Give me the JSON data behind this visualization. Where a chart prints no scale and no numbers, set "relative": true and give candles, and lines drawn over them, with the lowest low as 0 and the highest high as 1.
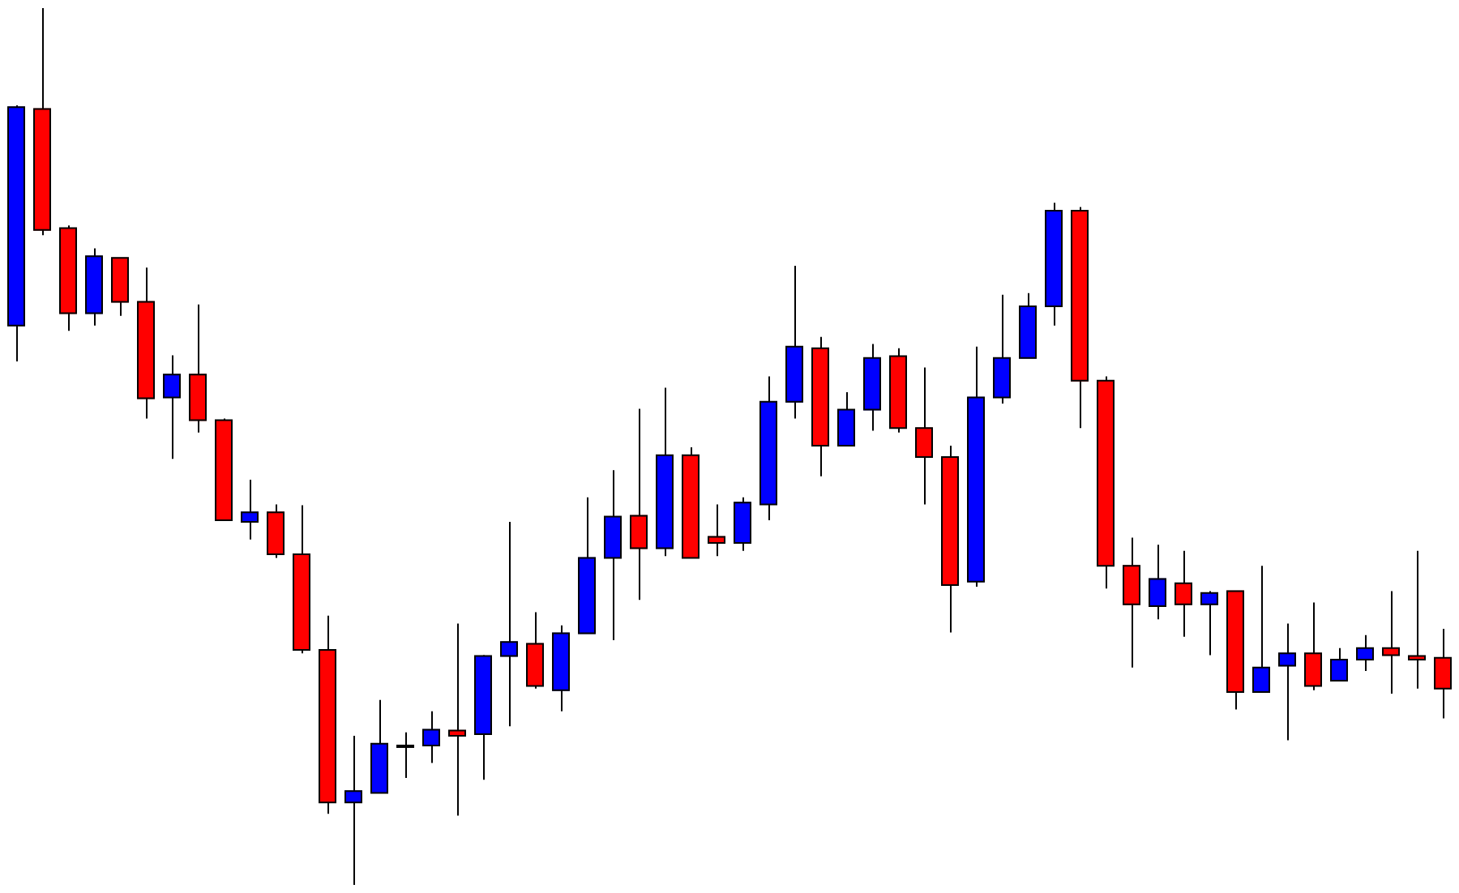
{
  "chart_data": {
    "type": "candlestick",
    "relative": true,
    "categories": [
      null,
      null,
      null,
      null,
      null,
      null,
      null,
      null,
      null,
      null,
      null,
      null,
      null,
      null,
      null,
      null,
      null,
      null,
      null,
      null,
      null,
      null,
      null,
      null,
      null,
      null,
      null,
      null,
      null,
      null,
      null,
      null,
      null,
      null,
      null,
      null,
      null,
      null,
      null,
      null,
      null,
      null,
      null,
      null,
      null,
      null,
      null,
      null,
      null,
      null,
      null,
      null,
      null,
      null,
      null,
      null
    ],
    "ohlc": [
      [
        0.638,
        0.889,
        0.597,
        0.887
      ],
      [
        0.885,
        1,
        0.741,
        0.747
      ],
      [
        0.749,
        0.752,
        0.632,
        0.652
      ],
      [
        0.652,
        0.726,
        0.638,
        0.717
      ],
      [
        0.715,
        0.715,
        0.649,
        0.665
      ],
      [
        0.665,
        0.704,
        0.532,
        0.555
      ],
      [
        0.556,
        0.604,
        0.486,
        0.582
      ],
      [
        0.582,
        0.662,
        0.516,
        0.53
      ],
      [
        0.53,
        0.532,
        0.416,
        0.416
      ],
      [
        0.414,
        0.462,
        0.394,
        0.425
      ],
      [
        0.425,
        0.434,
        0.373,
        0.377
      ],
      [
        0.377,
        0.433,
        0.264,
        0.268
      ],
      [
        0.268,
        0.307,
        0.081,
        0.094
      ],
      [
        0.094,
        0.17,
        0,
        0.107
      ],
      [
        0.105,
        0.211,
        0.105,
        0.161
      ],
      [
        0.159,
        0.174,
        0.122,
        0.159
      ],
      [
        0.159,
        0.198,
        0.139,
        0.177
      ],
      [
        0.176,
        0.298,
        0.079,
        0.17
      ],
      [
        0.172,
        0.262,
        0.12,
        0.261
      ],
      [
        0.261,
        0.414,
        0.181,
        0.277
      ],
      [
        0.275,
        0.311,
        0.224,
        0.227
      ],
      [
        0.222,
        0.296,
        0.198,
        0.287
      ],
      [
        0.287,
        0.442,
        0.287,
        0.373
      ],
      [
        0.373,
        0.473,
        0.279,
        0.42
      ],
      [
        0.421,
        0.543,
        0.325,
        0.384
      ],
      [
        0.384,
        0.567,
        0.375,
        0.49
      ],
      [
        0.49,
        0.499,
        0.373,
        0.373
      ],
      [
        0.397,
        0.434,
        0.375,
        0.39
      ],
      [
        0.39,
        0.442,
        0.381,
        0.436
      ],
      [
        0.434,
        0.58,
        0.416,
        0.551
      ],
      [
        0.551,
        0.706,
        0.532,
        0.614
      ],
      [
        0.612,
        0.625,
        0.466,
        0.501
      ],
      [
        0.501,
        0.562,
        0.501,
        0.542
      ],
      [
        0.542,
        0.617,
        0.518,
        0.601
      ],
      [
        0.603,
        0.612,
        0.516,
        0.521
      ],
      [
        0.521,
        0.59,
        0.434,
        0.488
      ],
      [
        0.488,
        0.501,
        0.288,
        0.342
      ],
      [
        0.346,
        0.614,
        0.34,
        0.556
      ],
      [
        0.556,
        0.673,
        0.549,
        0.601
      ],
      [
        0.601,
        0.675,
        0.601,
        0.66
      ],
      [
        0.66,
        0.778,
        0.638,
        0.769
      ],
      [
        0.769,
        0.773,
        0.521,
        0.575
      ],
      [
        0.575,
        0.58,
        0.338,
        0.364
      ],
      [
        0.364,
        0.396,
        0.248,
        0.32
      ],
      [
        0.318,
        0.388,
        0.303,
        0.349
      ],
      [
        0.344,
        0.381,
        0.283,
        0.32
      ],
      [
        0.32,
        0.335,
        0.262,
        0.333
      ],
      [
        0.335,
        0.335,
        0.2,
        0.22
      ],
      [
        0.22,
        0.364,
        0.22,
        0.248
      ],
      [
        0.25,
        0.298,
        0.165,
        0.264
      ],
      [
        0.264,
        0.322,
        0.222,
        0.227
      ],
      [
        0.233,
        0.27,
        0.233,
        0.257
      ],
      [
        0.257,
        0.285,
        0.244,
        0.27
      ],
      [
        0.27,
        0.335,
        0.218,
        0.262
      ],
      [
        0.261,
        0.381,
        0.224,
        0.257
      ],
      [
        0.259,
        0.292,
        0.19,
        0.224
      ]
    ],
    "colors": [
      "#0000ff",
      "#ff0000",
      "#ff0000",
      "#0000ff",
      "#ff0000",
      "#ff0000",
      "#0000ff",
      "#ff0000",
      "#ff0000",
      "#0000ff",
      "#ff0000",
      "#ff0000",
      "#ff0000",
      "#0000ff",
      "#0000ff",
      "#0000ff",
      "#0000ff",
      "#ff0000",
      "#0000ff",
      "#0000ff",
      "#ff0000",
      "#0000ff",
      "#0000ff",
      "#0000ff",
      "#ff0000",
      "#0000ff",
      "#ff0000",
      "#ff0000",
      "#0000ff",
      "#0000ff",
      "#0000ff",
      "#ff0000",
      "#0000ff",
      "#0000ff",
      "#ff0000",
      "#ff0000",
      "#ff0000",
      "#0000ff",
      "#0000ff",
      "#0000ff",
      "#0000ff",
      "#ff0000",
      "#ff0000",
      "#ff0000",
      "#0000ff",
      "#ff0000",
      "#0000ff",
      "#ff0000",
      "#0000ff",
      "#0000ff",
      "#ff0000",
      "#0000ff",
      "#0000ff",
      "#ff0000",
      "#ff0000",
      "#ff0000"
    ]
  }
}
